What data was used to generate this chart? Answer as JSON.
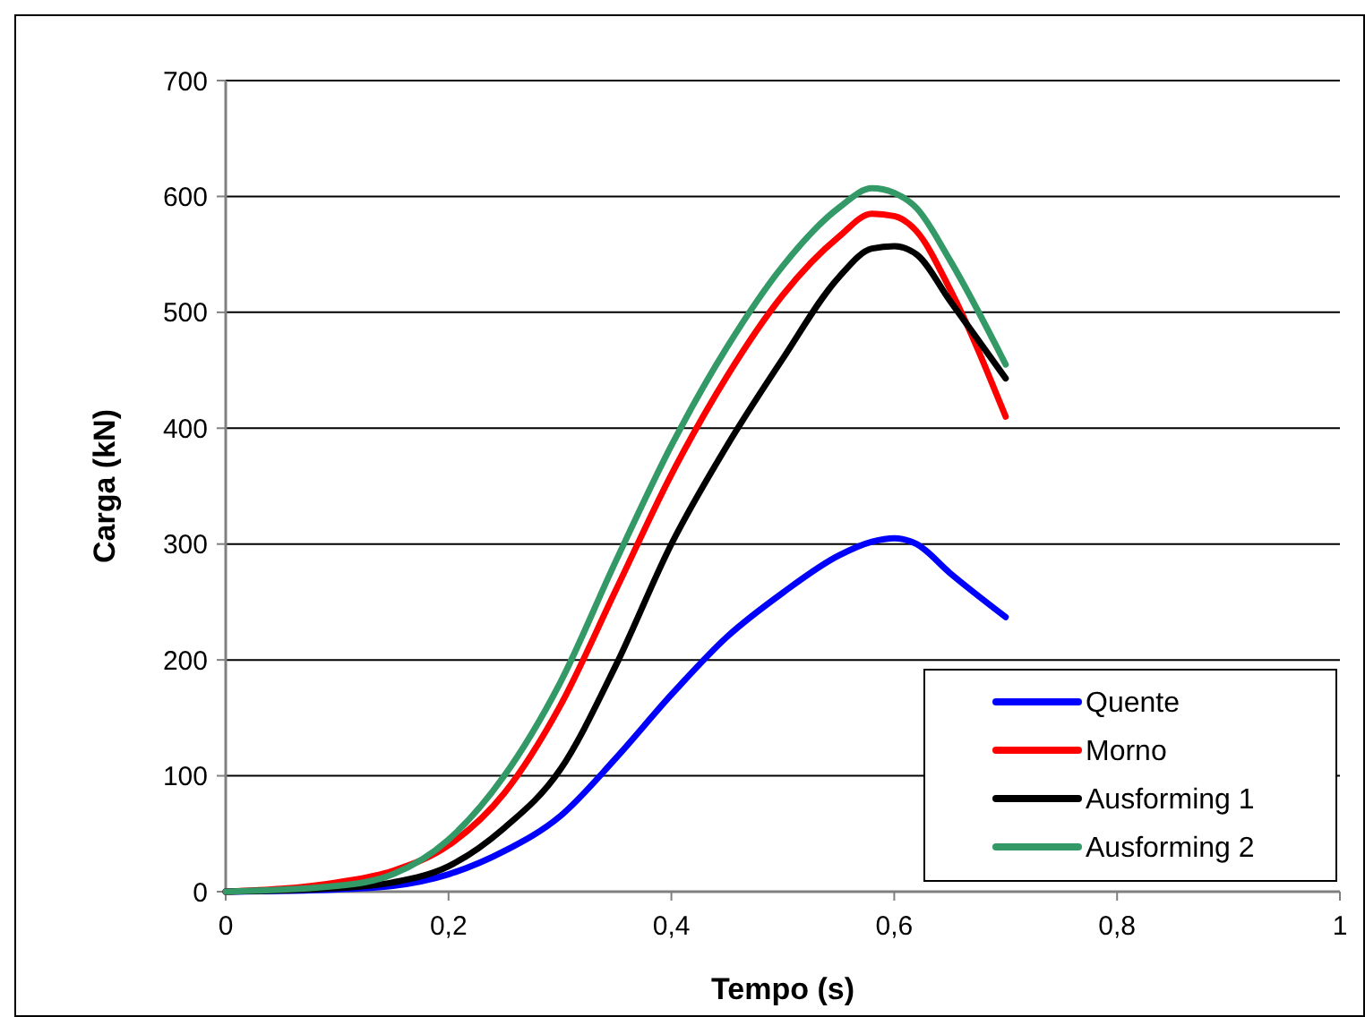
{
  "chart_data": {
    "type": "line",
    "xlabel": "Tempo (s)",
    "ylabel": "Carga (kN)",
    "x": [
      0,
      0.1,
      0.15,
      0.2,
      0.25,
      0.3,
      0.35,
      0.4,
      0.45,
      0.5,
      0.55,
      0.58,
      0.6,
      0.62,
      0.65,
      0.7
    ],
    "series": [
      {
        "name": "Quente",
        "color": "#0000ff",
        "values": [
          0,
          2,
          5,
          15,
          35,
          65,
          115,
          170,
          220,
          258,
          290,
          302,
          305,
          300,
          275,
          237
        ]
      },
      {
        "name": "Morno",
        "color": "#ff0000",
        "values": [
          0,
          8,
          18,
          40,
          85,
          160,
          260,
          360,
          445,
          515,
          565,
          585,
          583,
          570,
          520,
          410
        ]
      },
      {
        "name": "Ausforming 1",
        "color": "#000000",
        "values": [
          0,
          3,
          8,
          22,
          55,
          105,
          195,
          300,
          385,
          460,
          530,
          555,
          557,
          550,
          510,
          443
        ]
      },
      {
        "name": "Ausforming 2",
        "color": "#339966",
        "values": [
          0,
          5,
          15,
          45,
          100,
          180,
          285,
          385,
          470,
          540,
          590,
          607,
          603,
          590,
          545,
          455
        ]
      }
    ],
    "xlim": [
      0,
      1
    ],
    "ylim": [
      0,
      700
    ],
    "xticks": [
      0,
      {
        "value": 0.2,
        "label": "0,2"
      },
      {
        "value": 0.4,
        "label": "0,4"
      },
      {
        "value": 0.6,
        "label": "0,6"
      },
      {
        "value": 0.8,
        "label": "0,8"
      },
      1
    ],
    "yticks": [
      0,
      100,
      200,
      300,
      400,
      500,
      600,
      700
    ],
    "grid": "y",
    "legend": "bottom right",
    "marker": "none",
    "line_style": "solid"
  }
}
